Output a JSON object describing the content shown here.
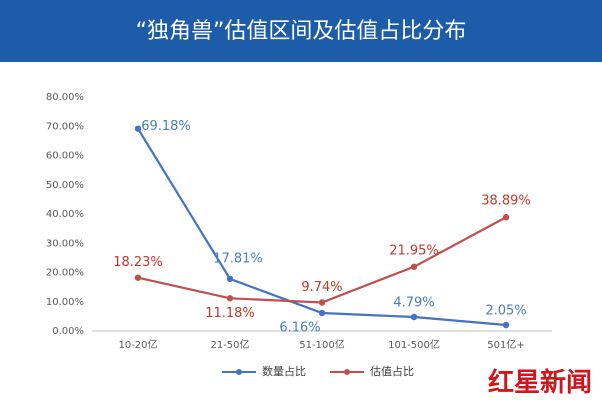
{
  "chart_data": {
    "type": "line",
    "title": "“独角兽”估值区间及估值占比分布",
    "logo": "红星新闻",
    "categories": [
      "10-20亿",
      "21-50亿",
      "51-100亿",
      "101-500亿",
      "501亿+"
    ],
    "series": [
      {
        "name": "数量占比",
        "color": "#4472c4",
        "label_color": "#4a7ebb",
        "values": [
          69.18,
          17.81,
          6.16,
          4.79,
          2.05
        ],
        "value_labels": [
          "69.18%",
          "17.81%",
          "6.16%",
          "4.79%",
          "2.05%"
        ]
      },
      {
        "name": "估值占比",
        "color": "#c0504d",
        "label_color": "#c0392b",
        "values": [
          18.23,
          11.18,
          9.74,
          21.95,
          38.89
        ],
        "value_labels": [
          "18.23%",
          "11.18%",
          "9.74%",
          "21.95%",
          "38.89%"
        ]
      }
    ],
    "ylim": [
      0,
      80
    ],
    "yticks": [
      {
        "value": 0,
        "label": "0.00%"
      },
      {
        "value": 10,
        "label": "10.00%"
      },
      {
        "value": 20,
        "label": "20.00%"
      },
      {
        "value": 30,
        "label": "30.00%"
      },
      {
        "value": 40,
        "label": "40.00%"
      },
      {
        "value": 50,
        "label": "50.00%"
      },
      {
        "value": 60,
        "label": "60.00%"
      },
      {
        "value": 70,
        "label": "70.00%"
      },
      {
        "value": 80,
        "label": "80.00%"
      }
    ],
    "grid": false
  }
}
